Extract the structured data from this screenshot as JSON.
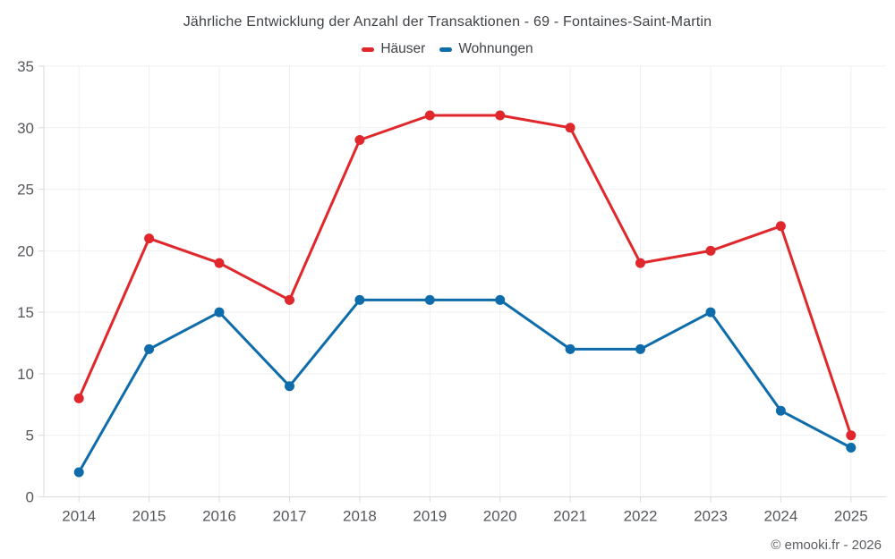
{
  "header": {
    "title": "Jährliche Entwicklung der Anzahl der Transaktionen - 69 - Fontaines-Saint-Martin"
  },
  "legend": {
    "items": [
      {
        "label": "Häuser",
        "color": "#df272c"
      },
      {
        "label": "Wohnungen",
        "color": "#0f6cab"
      }
    ]
  },
  "footer": {
    "copyright": "© emooki.fr - 2026"
  },
  "chart_data": {
    "type": "line",
    "title": "Jährliche Entwicklung der Anzahl der Transaktionen - 69 - Fontaines-Saint-Martin",
    "categories": [
      "2014",
      "2015",
      "2016",
      "2017",
      "2018",
      "2019",
      "2020",
      "2021",
      "2022",
      "2023",
      "2024",
      "2025"
    ],
    "series": [
      {
        "name": "Häuser",
        "color": "#df272c",
        "values": [
          8,
          21,
          19,
          16,
          29,
          31,
          31,
          30,
          19,
          20,
          22,
          5
        ]
      },
      {
        "name": "Wohnungen",
        "color": "#0f6cab",
        "values": [
          2,
          12,
          15,
          9,
          16,
          16,
          16,
          12,
          12,
          15,
          7,
          4
        ]
      }
    ],
    "xlabel": "",
    "ylabel": "",
    "ylim": [
      0,
      35
    ],
    "ytick_step": 5,
    "yticks": [
      0,
      5,
      10,
      15,
      20,
      25,
      30,
      35
    ],
    "grid": true,
    "legend_position": "top",
    "colors": {
      "grid": "#efefef",
      "axis": "#d8dadb",
      "tick_text": "#55585c",
      "title_text": "#3f4347",
      "background": "#ffffff"
    }
  }
}
